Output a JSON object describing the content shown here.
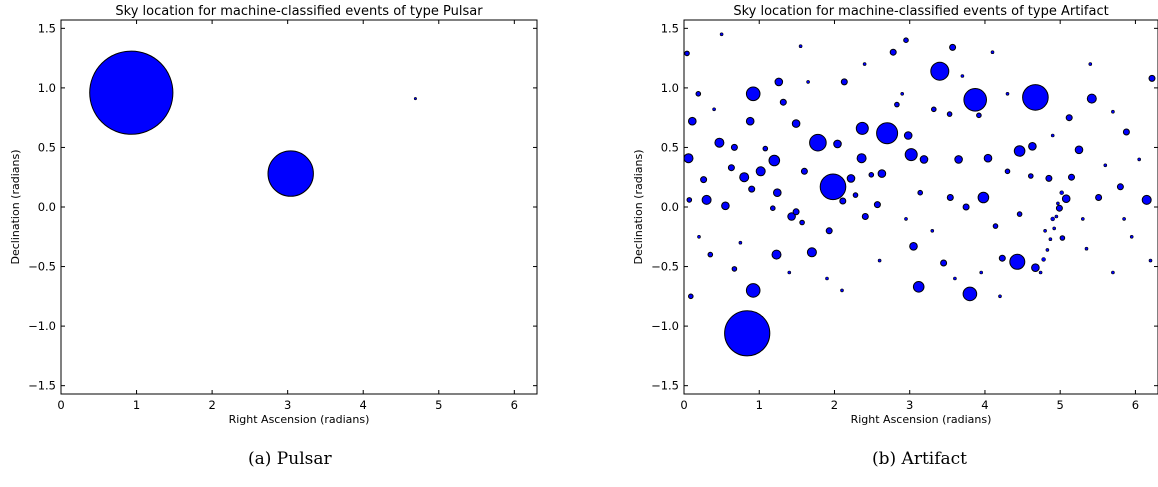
{
  "chart_data": [
    {
      "type": "scatter",
      "title": "Sky location for machine-classified events of type Pulsar",
      "xlabel": "Right Ascension (radians)",
      "ylabel": "Declination (radians)",
      "xlim": [
        0,
        6.3
      ],
      "ylim": [
        -1.57,
        1.57
      ],
      "xticks": [
        0,
        1,
        2,
        3,
        4,
        5,
        6
      ],
      "yticks": [
        -1.5,
        -1.0,
        -0.5,
        0.0,
        0.5,
        1.0,
        1.5
      ],
      "grid": false,
      "marker_color": "#0000ff",
      "caption": "(a) Pulsar",
      "points": [
        {
          "x": 0.93,
          "y": 0.96,
          "r": 0.55
        },
        {
          "x": 3.04,
          "y": 0.28,
          "r": 0.3
        },
        {
          "x": 4.69,
          "y": 0.91,
          "r": 0.012
        }
      ]
    },
    {
      "type": "scatter",
      "title": "Sky location for machine-classified events of type Artifact",
      "xlabel": "Right Ascension (radians)",
      "ylabel": "Declination (radians)",
      "xlim": [
        0,
        6.3
      ],
      "ylim": [
        -1.57,
        1.57
      ],
      "xticks": [
        0,
        1,
        2,
        3,
        4,
        5,
        6
      ],
      "yticks": [
        -1.5,
        -1.0,
        -0.5,
        0.0,
        0.5,
        1.0,
        1.5
      ],
      "grid": false,
      "marker_color": "#0000ff",
      "caption": "(b) Artifact",
      "points": [
        {
          "x": 0.84,
          "y": -1.06,
          "r": 0.3
        },
        {
          "x": 1.98,
          "y": 0.17,
          "r": 0.17
        },
        {
          "x": 4.67,
          "y": 0.92,
          "r": 0.17
        },
        {
          "x": 3.87,
          "y": 0.9,
          "r": 0.15
        },
        {
          "x": 3.4,
          "y": 1.14,
          "r": 0.12
        },
        {
          "x": 2.7,
          "y": 0.62,
          "r": 0.14
        },
        {
          "x": 1.78,
          "y": 0.54,
          "r": 0.11
        },
        {
          "x": 4.43,
          "y": -0.46,
          "r": 0.1
        },
        {
          "x": 3.8,
          "y": -0.73,
          "r": 0.09
        },
        {
          "x": 0.92,
          "y": -0.7,
          "r": 0.09
        },
        {
          "x": 0.92,
          "y": 0.95,
          "r": 0.09
        },
        {
          "x": 3.02,
          "y": 0.44,
          "r": 0.08
        },
        {
          "x": 2.37,
          "y": 0.66,
          "r": 0.08
        },
        {
          "x": 3.98,
          "y": 0.08,
          "r": 0.07
        },
        {
          "x": 3.12,
          "y": -0.67,
          "r": 0.07
        },
        {
          "x": 1.2,
          "y": 0.39,
          "r": 0.07
        },
        {
          "x": 4.46,
          "y": 0.47,
          "r": 0.07
        },
        {
          "x": 0.8,
          "y": 0.25,
          "r": 0.06
        },
        {
          "x": 0.47,
          "y": 0.54,
          "r": 0.06
        },
        {
          "x": 1.02,
          "y": 0.3,
          "r": 0.06
        },
        {
          "x": 0.06,
          "y": 0.41,
          "r": 0.06
        },
        {
          "x": 0.3,
          "y": 0.06,
          "r": 0.06
        },
        {
          "x": 1.7,
          "y": -0.38,
          "r": 0.06
        },
        {
          "x": 1.23,
          "y": -0.4,
          "r": 0.06
        },
        {
          "x": 2.36,
          "y": 0.41,
          "r": 0.06
        },
        {
          "x": 6.15,
          "y": 0.06,
          "r": 0.06
        },
        {
          "x": 5.42,
          "y": 0.91,
          "r": 0.06
        },
        {
          "x": 3.65,
          "y": 0.4,
          "r": 0.05
        },
        {
          "x": 4.04,
          "y": 0.41,
          "r": 0.05
        },
        {
          "x": 4.63,
          "y": 0.51,
          "r": 0.05
        },
        {
          "x": 4.67,
          "y": -0.51,
          "r": 0.05
        },
        {
          "x": 2.22,
          "y": 0.24,
          "r": 0.05
        },
        {
          "x": 2.04,
          "y": 0.53,
          "r": 0.05
        },
        {
          "x": 3.05,
          "y": -0.33,
          "r": 0.05
        },
        {
          "x": 1.93,
          "y": -0.2,
          "r": 0.04
        },
        {
          "x": 1.26,
          "y": 1.05,
          "r": 0.05
        },
        {
          "x": 2.13,
          "y": 1.05,
          "r": 0.04
        },
        {
          "x": 0.11,
          "y": 0.72,
          "r": 0.05
        },
        {
          "x": 0.88,
          "y": 0.72,
          "r": 0.05
        },
        {
          "x": 5.25,
          "y": 0.48,
          "r": 0.05
        },
        {
          "x": 5.08,
          "y": 0.07,
          "r": 0.05
        },
        {
          "x": 5.15,
          "y": 0.25,
          "r": 0.04
        },
        {
          "x": 1.49,
          "y": 0.7,
          "r": 0.05
        },
        {
          "x": 2.63,
          "y": 0.28,
          "r": 0.05
        },
        {
          "x": 2.57,
          "y": 0.02,
          "r": 0.04
        },
        {
          "x": 2.98,
          "y": 0.6,
          "r": 0.05
        },
        {
          "x": 0.55,
          "y": 0.01,
          "r": 0.05
        },
        {
          "x": 1.43,
          "y": -0.08,
          "r": 0.05
        },
        {
          "x": 1.49,
          "y": -0.04,
          "r": 0.04
        },
        {
          "x": 1.24,
          "y": 0.12,
          "r": 0.05
        },
        {
          "x": 0.63,
          "y": 0.33,
          "r": 0.04
        },
        {
          "x": 3.54,
          "y": 0.08,
          "r": 0.04
        },
        {
          "x": 3.45,
          "y": -0.47,
          "r": 0.04
        },
        {
          "x": 3.57,
          "y": 1.34,
          "r": 0.04
        },
        {
          "x": 2.78,
          "y": 1.3,
          "r": 0.04
        },
        {
          "x": 2.11,
          "y": 0.05,
          "r": 0.04
        },
        {
          "x": 2.95,
          "y": 1.4,
          "r": 0.03
        },
        {
          "x": 3.19,
          "y": 0.4,
          "r": 0.05
        },
        {
          "x": 4.23,
          "y": -0.43,
          "r": 0.04
        },
        {
          "x": 0.26,
          "y": 0.23,
          "r": 0.04
        },
        {
          "x": 0.04,
          "y": 1.29,
          "r": 0.03
        },
        {
          "x": 0.09,
          "y": -0.75,
          "r": 0.03
        },
        {
          "x": 5.8,
          "y": 0.17,
          "r": 0.04
        },
        {
          "x": 5.51,
          "y": 0.08,
          "r": 0.04
        },
        {
          "x": 5.12,
          "y": 0.75,
          "r": 0.04
        },
        {
          "x": 6.22,
          "y": 1.08,
          "r": 0.04
        },
        {
          "x": 5.88,
          "y": 0.63,
          "r": 0.04
        },
        {
          "x": 4.85,
          "y": 0.24,
          "r": 0.04
        },
        {
          "x": 5.03,
          "y": -0.26,
          "r": 0.03
        },
        {
          "x": 4.99,
          "y": -0.01,
          "r": 0.04
        },
        {
          "x": 0.9,
          "y": 0.15,
          "r": 0.04
        },
        {
          "x": 1.6,
          "y": 0.3,
          "r": 0.04
        },
        {
          "x": 1.32,
          "y": 0.88,
          "r": 0.04
        },
        {
          "x": 2.41,
          "y": -0.08,
          "r": 0.04
        },
        {
          "x": 3.75,
          "y": 0.0,
          "r": 0.04
        },
        {
          "x": 4.3,
          "y": 0.3,
          "r": 0.03
        },
        {
          "x": 4.14,
          "y": -0.16,
          "r": 0.03
        },
        {
          "x": 3.32,
          "y": 0.82,
          "r": 0.03
        },
        {
          "x": 0.67,
          "y": 0.5,
          "r": 0.04
        },
        {
          "x": 0.19,
          "y": 0.95,
          "r": 0.03
        },
        {
          "x": 0.07,
          "y": 0.06,
          "r": 0.03
        },
        {
          "x": 2.83,
          "y": 0.86,
          "r": 0.03
        },
        {
          "x": 2.49,
          "y": 0.27,
          "r": 0.03
        },
        {
          "x": 4.61,
          "y": 0.26,
          "r": 0.03
        },
        {
          "x": 3.92,
          "y": 0.77,
          "r": 0.03
        },
        {
          "x": 1.08,
          "y": 0.49,
          "r": 0.03
        },
        {
          "x": 1.57,
          "y": -0.13,
          "r": 0.03
        },
        {
          "x": 0.35,
          "y": -0.4,
          "r": 0.03
        },
        {
          "x": 0.67,
          "y": -0.52,
          "r": 0.03
        },
        {
          "x": 1.18,
          "y": -0.01,
          "r": 0.03
        },
        {
          "x": 2.28,
          "y": 0.1,
          "r": 0.03
        },
        {
          "x": 3.14,
          "y": 0.12,
          "r": 0.03
        },
        {
          "x": 3.53,
          "y": 0.78,
          "r": 0.03
        },
        {
          "x": 4.46,
          "y": -0.06,
          "r": 0.03
        },
        {
          "x": 4.95,
          "y": -0.08,
          "r": 0.02
        },
        {
          "x": 4.9,
          "y": -0.1,
          "r": 0.025
        },
        {
          "x": 4.92,
          "y": -0.18,
          "r": 0.02
        },
        {
          "x": 4.87,
          "y": -0.27,
          "r": 0.02
        },
        {
          "x": 4.83,
          "y": -0.36,
          "r": 0.02
        },
        {
          "x": 4.78,
          "y": -0.44,
          "r": 0.025
        },
        {
          "x": 4.74,
          "y": -0.55,
          "r": 0.02
        },
        {
          "x": 4.97,
          "y": 0.03,
          "r": 0.02
        },
        {
          "x": 5.02,
          "y": 0.12,
          "r": 0.025
        },
        {
          "x": 4.8,
          "y": -0.2,
          "r": 0.02
        },
        {
          "x": 5.3,
          "y": -0.1,
          "r": 0.02
        },
        {
          "x": 5.6,
          "y": 0.35,
          "r": 0.02
        },
        {
          "x": 5.95,
          "y": -0.25,
          "r": 0.02
        },
        {
          "x": 6.05,
          "y": 0.4,
          "r": 0.02
        },
        {
          "x": 5.7,
          "y": -0.55,
          "r": 0.02
        },
        {
          "x": 5.4,
          "y": 1.2,
          "r": 0.02
        },
        {
          "x": 4.1,
          "y": 1.3,
          "r": 0.02
        },
        {
          "x": 0.5,
          "y": 1.45,
          "r": 0.02
        },
        {
          "x": 1.55,
          "y": 1.35,
          "r": 0.02
        },
        {
          "x": 2.4,
          "y": 1.2,
          "r": 0.02
        },
        {
          "x": 3.7,
          "y": 1.1,
          "r": 0.02
        },
        {
          "x": 4.9,
          "y": 0.6,
          "r": 0.02
        },
        {
          "x": 0.2,
          "y": -0.25,
          "r": 0.02
        },
        {
          "x": 0.75,
          "y": -0.3,
          "r": 0.02
        },
        {
          "x": 1.9,
          "y": -0.6,
          "r": 0.02
        },
        {
          "x": 2.6,
          "y": -0.45,
          "r": 0.02
        },
        {
          "x": 3.3,
          "y": -0.2,
          "r": 0.02
        },
        {
          "x": 3.95,
          "y": -0.55,
          "r": 0.02
        },
        {
          "x": 4.2,
          "y": -0.75,
          "r": 0.02
        },
        {
          "x": 2.1,
          "y": -0.7,
          "r": 0.02
        },
        {
          "x": 1.4,
          "y": -0.55,
          "r": 0.02
        },
        {
          "x": 0.4,
          "y": 0.82,
          "r": 0.02
        },
        {
          "x": 1.65,
          "y": 1.05,
          "r": 0.02
        },
        {
          "x": 2.9,
          "y": 0.95,
          "r": 0.02
        },
        {
          "x": 4.3,
          "y": 0.95,
          "r": 0.02
        },
        {
          "x": 5.7,
          "y": 0.8,
          "r": 0.02
        },
        {
          "x": 6.2,
          "y": -0.45,
          "r": 0.02
        },
        {
          "x": 5.85,
          "y": -0.1,
          "r": 0.02
        },
        {
          "x": 5.35,
          "y": -0.35,
          "r": 0.02
        },
        {
          "x": 3.6,
          "y": -0.6,
          "r": 0.02
        },
        {
          "x": 2.95,
          "y": -0.1,
          "r": 0.02
        }
      ]
    }
  ]
}
